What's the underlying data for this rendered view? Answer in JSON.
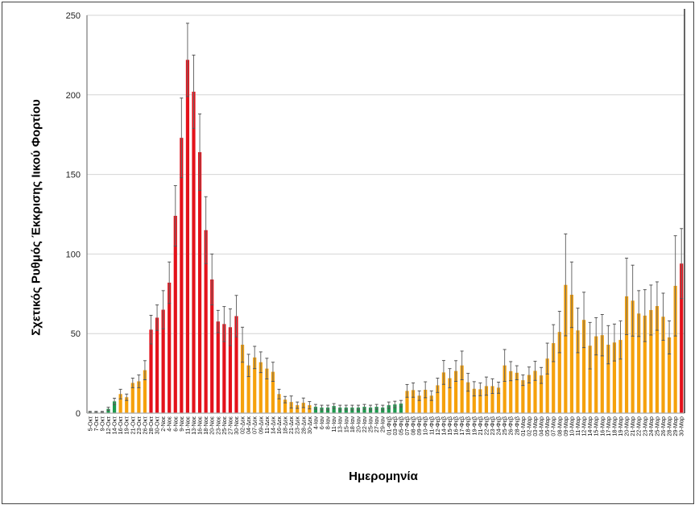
{
  "chart_data": {
    "type": "bar",
    "title": "",
    "xlabel": "Ημερομηνία",
    "ylabel": "Σχετικός Ρυθμός Έκκρισης Ιικού Φορτίου",
    "ylim": [
      0,
      250
    ],
    "yticks": [
      0,
      50,
      100,
      150,
      200,
      250
    ],
    "grid": true,
    "colors": {
      "g": "#1f9a4e",
      "o": "#f5a10c",
      "r": "#e3121b",
      "error": "#6b6b6b"
    },
    "categories": [
      "5-Οκτ",
      "7-Οκτ",
      "9-Οκτ",
      "12-Οκτ",
      "14-Οκτ",
      "16-Οκτ",
      "19-Οκτ",
      "21-Οκτ",
      "23-Οκτ",
      "26-Οκτ",
      "28-Οκτ",
      "30-Οκτ",
      "2-Νοε",
      "4-Νοε",
      "6-Νοε",
      "9-Νοε",
      "11-Νοε",
      "13-Νοε",
      "16-Νοε",
      "18-Νοε",
      "20-Νοε",
      "23-Νοε",
      "25-Νοε",
      "27-Νοε",
      "30-Νοε",
      "02-Δεκ",
      "04-Δεκ",
      "07-Δεκ",
      "09-Δεκ",
      "11-Δεκ",
      "14-Δεκ",
      "16-Δεκ",
      "18-Δεκ",
      "21-Δεκ",
      "23-Δεκ",
      "28-Δεκ",
      "30-Δεκ",
      "4-Ιαν",
      "6-Ιαν",
      "8-Ιαν",
      "11-Ιαν",
      "13-Ιαν",
      "15-Ιαν",
      "18-Ιαν",
      "20-Ιαν",
      "22-Ιαν",
      "25-Ιαν",
      "27-Ιαν",
      "29-Ιαν",
      "01-Φεβ",
      "03-Φεβ",
      "05-Φεβ",
      "07-Φεβ",
      "08-Φεβ",
      "09-Φεβ",
      "10-Φεβ",
      "11-Φεβ",
      "12-Φεβ",
      "14-Φεβ",
      "15-Φεβ",
      "16-Φεβ",
      "17-Φεβ",
      "18-Φεβ",
      "19-Φεβ",
      "21-Φεβ",
      "22-Φεβ",
      "23-Φεβ",
      "24-Φεβ",
      "25-Φεβ",
      "26-Φεβ",
      "28-Φεβ",
      "01-Μαρ",
      "02-Μαρ",
      "03-Μαρ",
      "04-Μαρ",
      "05-Μαρ",
      "07-Μαρ",
      "08-Μαρ",
      "09-Μαρ",
      "10-Μαρ",
      "11-Μαρ",
      "12-Μαρ",
      "14-Μαρ",
      "15-Μαρ",
      "16-Μαρ",
      "17-Μαρ",
      "18-Μαρ",
      "19-Μαρ",
      "20-Μαρ",
      "21-Μαρ",
      "22-Μαρ",
      "23-Μαρ",
      "24-Μαρ",
      "25-Μαρ",
      "26-Μαρ",
      "28-Μαρ",
      "29-Μαρ",
      "30-Μαρ"
    ],
    "values": [
      0.8,
      0.8,
      0.8,
      2.7,
      7.4,
      12,
      10,
      19,
      20,
      27,
      52.5,
      60,
      65,
      82,
      124,
      173,
      222,
      202,
      164,
      115,
      84,
      57.6,
      56,
      54,
      61,
      43,
      30,
      35,
      32,
      28,
      26,
      12,
      8.5,
      7,
      5,
      6.5,
      5,
      4,
      3.5,
      3.5,
      4.5,
      3.5,
      3.5,
      3.5,
      3.5,
      4,
      3.5,
      4,
      3.5,
      5,
      5.5,
      6,
      14,
      14.5,
      11,
      14.7,
      11,
      17.5,
      25.6,
      22,
      26.5,
      30,
      19.4,
      15.3,
      15,
      17,
      17,
      16,
      30,
      26.4,
      25.4,
      20.7,
      24,
      26.6,
      23.7,
      34.3,
      44,
      51,
      80.6,
      74.4,
      52,
      58.6,
      42.4,
      48.3,
      49,
      43,
      44.4,
      46,
      73.4,
      70.7,
      62.6,
      61.3,
      64.8,
      67.3,
      60.6,
      47.6,
      80,
      94
    ],
    "errors": [
      0.3,
      0.3,
      0.3,
      1,
      2,
      3,
      2,
      3,
      4,
      6,
      9,
      8,
      12,
      13,
      19,
      25,
      23,
      23,
      24,
      21,
      16,
      7,
      11,
      11.5,
      13,
      11,
      7,
      7,
      6.5,
      6.5,
      6,
      3,
      2,
      3.8,
      2,
      3,
      2.3,
      1.5,
      1.5,
      1.5,
      1.5,
      1.5,
      1.5,
      1.5,
      1.5,
      1.5,
      1.5,
      1.5,
      1.5,
      2,
      2,
      2,
      4,
      4.5,
      3,
      5,
      3,
      4.5,
      7.5,
      6,
      6.5,
      9,
      5.6,
      4.5,
      4,
      5.7,
      4.6,
      3.5,
      10,
      6,
      4.4,
      3.3,
      5,
      6,
      5,
      9.7,
      11.6,
      13,
      32,
      20.6,
      14,
      17.4,
      14.6,
      11.7,
      13,
      12,
      11.6,
      12,
      24,
      22.3,
      14.4,
      16.3,
      15.7,
      15.2,
      14.8,
      10.4,
      31.5,
      22
    ],
    "groups": [
      "g",
      "g",
      "g",
      "g",
      "g",
      "o",
      "o",
      "o",
      "o",
      "o",
      "r",
      "r",
      "r",
      "r",
      "r",
      "r",
      "r",
      "r",
      "r",
      "r",
      "r",
      "r",
      "r",
      "r",
      "r",
      "o",
      "o",
      "o",
      "o",
      "o",
      "o",
      "o",
      "o",
      "o",
      "o",
      "o",
      "o",
      "g",
      "g",
      "g",
      "g",
      "g",
      "g",
      "g",
      "g",
      "g",
      "g",
      "g",
      "g",
      "g",
      "g",
      "g",
      "o",
      "o",
      "o",
      "o",
      "o",
      "o",
      "o",
      "o",
      "o",
      "o",
      "o",
      "o",
      "o",
      "o",
      "o",
      "o",
      "o",
      "o",
      "o",
      "o",
      "o",
      "o",
      "o",
      "o",
      "o",
      "o",
      "o",
      "o",
      "o",
      "o",
      "o",
      "o",
      "o",
      "o",
      "o",
      "o",
      "o",
      "o",
      "o",
      "o",
      "o",
      "o",
      "o",
      "o",
      "o",
      "r"
    ]
  }
}
